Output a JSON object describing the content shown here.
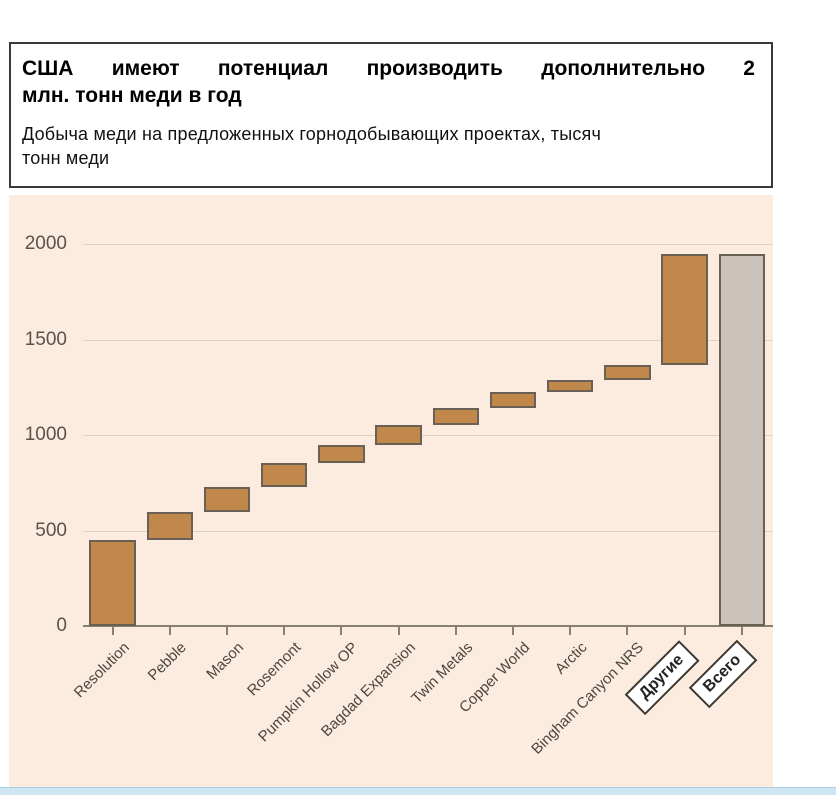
{
  "header": {
    "title_line1": "США имеют потенциал производить дополнительно 2",
    "title_line2": "млн. тонн меди в год",
    "subtitle_line1": "Добыча меди на предложенных горнодобывающих проектах, тысяч",
    "subtitle_line2": "тонн меди"
  },
  "chart_data": {
    "type": "bar",
    "subtype": "waterfall",
    "title": "США имеют потенциал производить дополнительно 2 млн. тонн меди в год",
    "subtitle": "Добыча меди на предложенных горнодобывающих проектах, тысяч тонн меди",
    "xlabel": "",
    "ylabel": "тысяч тонн меди",
    "categories": [
      "Resolution",
      "Pebble",
      "Mason",
      "Rosemont",
      "Pumpkin Hollow OP",
      "Bagdad Expansion",
      "Twin Metals",
      "Copper World",
      "Arctic",
      "Bingham Canyon NRS",
      "Другие",
      "Всего"
    ],
    "bars": [
      {
        "label": "Resolution",
        "start": 0,
        "end": 450,
        "role": "increment",
        "boxed_label": false
      },
      {
        "label": "Pebble",
        "start": 450,
        "end": 595,
        "role": "increment",
        "boxed_label": false
      },
      {
        "label": "Mason",
        "start": 595,
        "end": 730,
        "role": "increment",
        "boxed_label": false
      },
      {
        "label": "Rosemont",
        "start": 730,
        "end": 855,
        "role": "increment",
        "boxed_label": false
      },
      {
        "label": "Pumpkin Hollow OP",
        "start": 855,
        "end": 950,
        "role": "increment",
        "boxed_label": false
      },
      {
        "label": "Bagdad Expansion",
        "start": 950,
        "end": 1050,
        "role": "increment",
        "boxed_label": false
      },
      {
        "label": "Twin Metals",
        "start": 1050,
        "end": 1140,
        "role": "increment",
        "boxed_label": false
      },
      {
        "label": "Copper World",
        "start": 1140,
        "end": 1225,
        "role": "increment",
        "boxed_label": false
      },
      {
        "label": "Arctic",
        "start": 1225,
        "end": 1290,
        "role": "increment",
        "boxed_label": false
      },
      {
        "label": "Bingham Canyon NRS",
        "start": 1290,
        "end": 1365,
        "role": "increment",
        "boxed_label": false
      },
      {
        "label": "Другие",
        "start": 1365,
        "end": 1950,
        "role": "increment",
        "boxed_label": true
      },
      {
        "label": "Всего",
        "start": 0,
        "end": 1950,
        "role": "total",
        "boxed_label": true
      }
    ],
    "y_ticks": [
      0,
      500,
      1000,
      1500,
      2000
    ],
    "ylim": [
      0,
      2250
    ],
    "grid": true,
    "legend_position": "none",
    "colors": {
      "plot_background": "#fcece0",
      "increment_fill": "#c0884a",
      "total_fill": "#cbc3bb",
      "bar_border": "#6a6055",
      "gridline": "#ddd2c6",
      "axis_line": "#88806f",
      "tick_label": "#5b5349",
      "category_label": "#4c463c"
    }
  },
  "page": {
    "bottom_strip_color": "#cfe5f2"
  }
}
